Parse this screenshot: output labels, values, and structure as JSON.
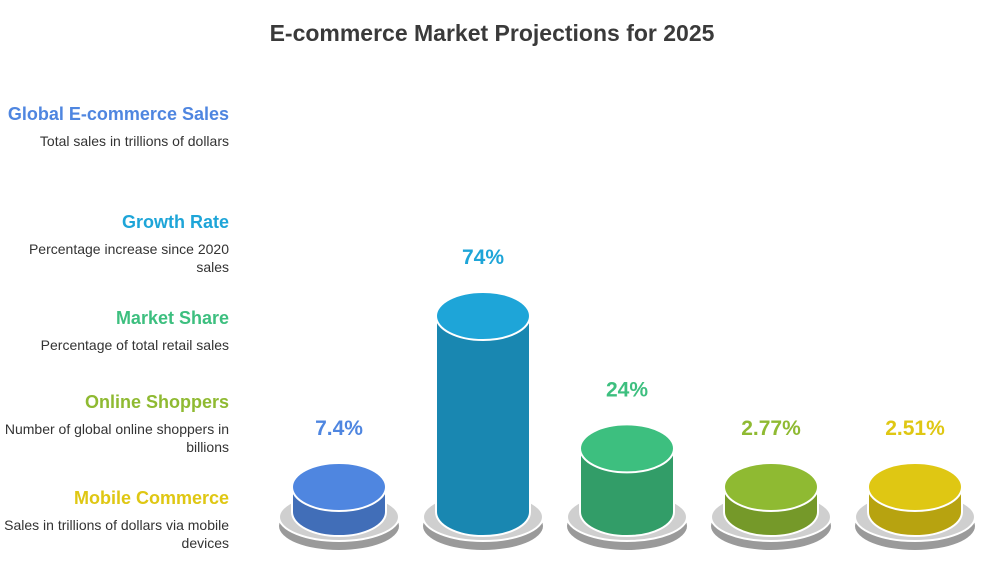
{
  "title": "E-commerce Market Projections for 2025",
  "legend": [
    {
      "title": "Global E-commerce Sales",
      "desc": "Total sales in trillions of dollars",
      "color": "#4F86E0"
    },
    {
      "title": "Growth Rate",
      "desc": "Percentage increase since 2020 sales",
      "color": "#1EA5D8"
    },
    {
      "title": "Market Share",
      "desc": "Percentage of total retail sales",
      "color": "#3DBF7F"
    },
    {
      "title": "Online Shoppers",
      "desc": "Number of global online shoppers in billions",
      "color": "#8FBA32"
    },
    {
      "title": "Mobile Commerce",
      "desc": "Sales in trillions of dollars via mobile devices",
      "color": "#DFC713"
    }
  ],
  "chart_data": {
    "type": "bar",
    "title": "E-commerce Market Projections for 2025",
    "categories": [
      "Global E-commerce Sales",
      "Growth Rate",
      "Market Share",
      "Online Shoppers",
      "Mobile Commerce"
    ],
    "values": [
      7.4,
      74,
      24,
      2.77,
      2.51
    ],
    "labels": [
      "7.4%",
      "74%",
      "24%",
      "2.77%",
      "2.51%"
    ],
    "colors": [
      "#4F86E0",
      "#1EA5D8",
      "#3DBF7F",
      "#8FBA32",
      "#DFC713"
    ],
    "xlabel": "",
    "ylabel": ""
  }
}
